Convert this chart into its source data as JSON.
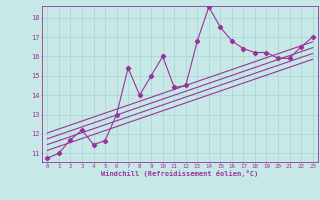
{
  "xlabel": "Windchill (Refroidissement éolien,°C)",
  "bg_color": "#c8e8e8",
  "grid_color": "#a8d4d4",
  "line_color": "#993399",
  "xlim": [
    -0.5,
    23.5
  ],
  "ylim": [
    10.55,
    18.6
  ],
  "xticks": [
    0,
    1,
    2,
    3,
    4,
    5,
    6,
    7,
    8,
    9,
    10,
    11,
    12,
    13,
    14,
    15,
    16,
    17,
    18,
    19,
    20,
    21,
    22,
    23
  ],
  "yticks": [
    11,
    12,
    13,
    14,
    15,
    16,
    17,
    18
  ],
  "data_x": [
    0,
    1,
    2,
    3,
    4,
    5,
    6,
    7,
    8,
    9,
    10,
    11,
    12,
    13,
    14,
    15,
    16,
    17,
    18,
    19,
    20,
    21,
    22,
    23
  ],
  "data_y": [
    10.75,
    11.0,
    11.7,
    12.2,
    11.45,
    11.65,
    13.0,
    15.4,
    14.0,
    15.0,
    16.0,
    14.4,
    14.5,
    16.8,
    18.55,
    17.5,
    16.8,
    16.4,
    16.2,
    16.2,
    15.9,
    15.9,
    16.5,
    17.0
  ],
  "trend_lines": [
    {
      "x0": 0,
      "y0": 11.15,
      "x1": 23,
      "y1": 15.85
    },
    {
      "x0": 0,
      "y0": 11.45,
      "x1": 23,
      "y1": 16.15
    },
    {
      "x0": 0,
      "y0": 11.75,
      "x1": 23,
      "y1": 16.45
    },
    {
      "x0": 0,
      "y0": 12.05,
      "x1": 23,
      "y1": 16.75
    }
  ]
}
